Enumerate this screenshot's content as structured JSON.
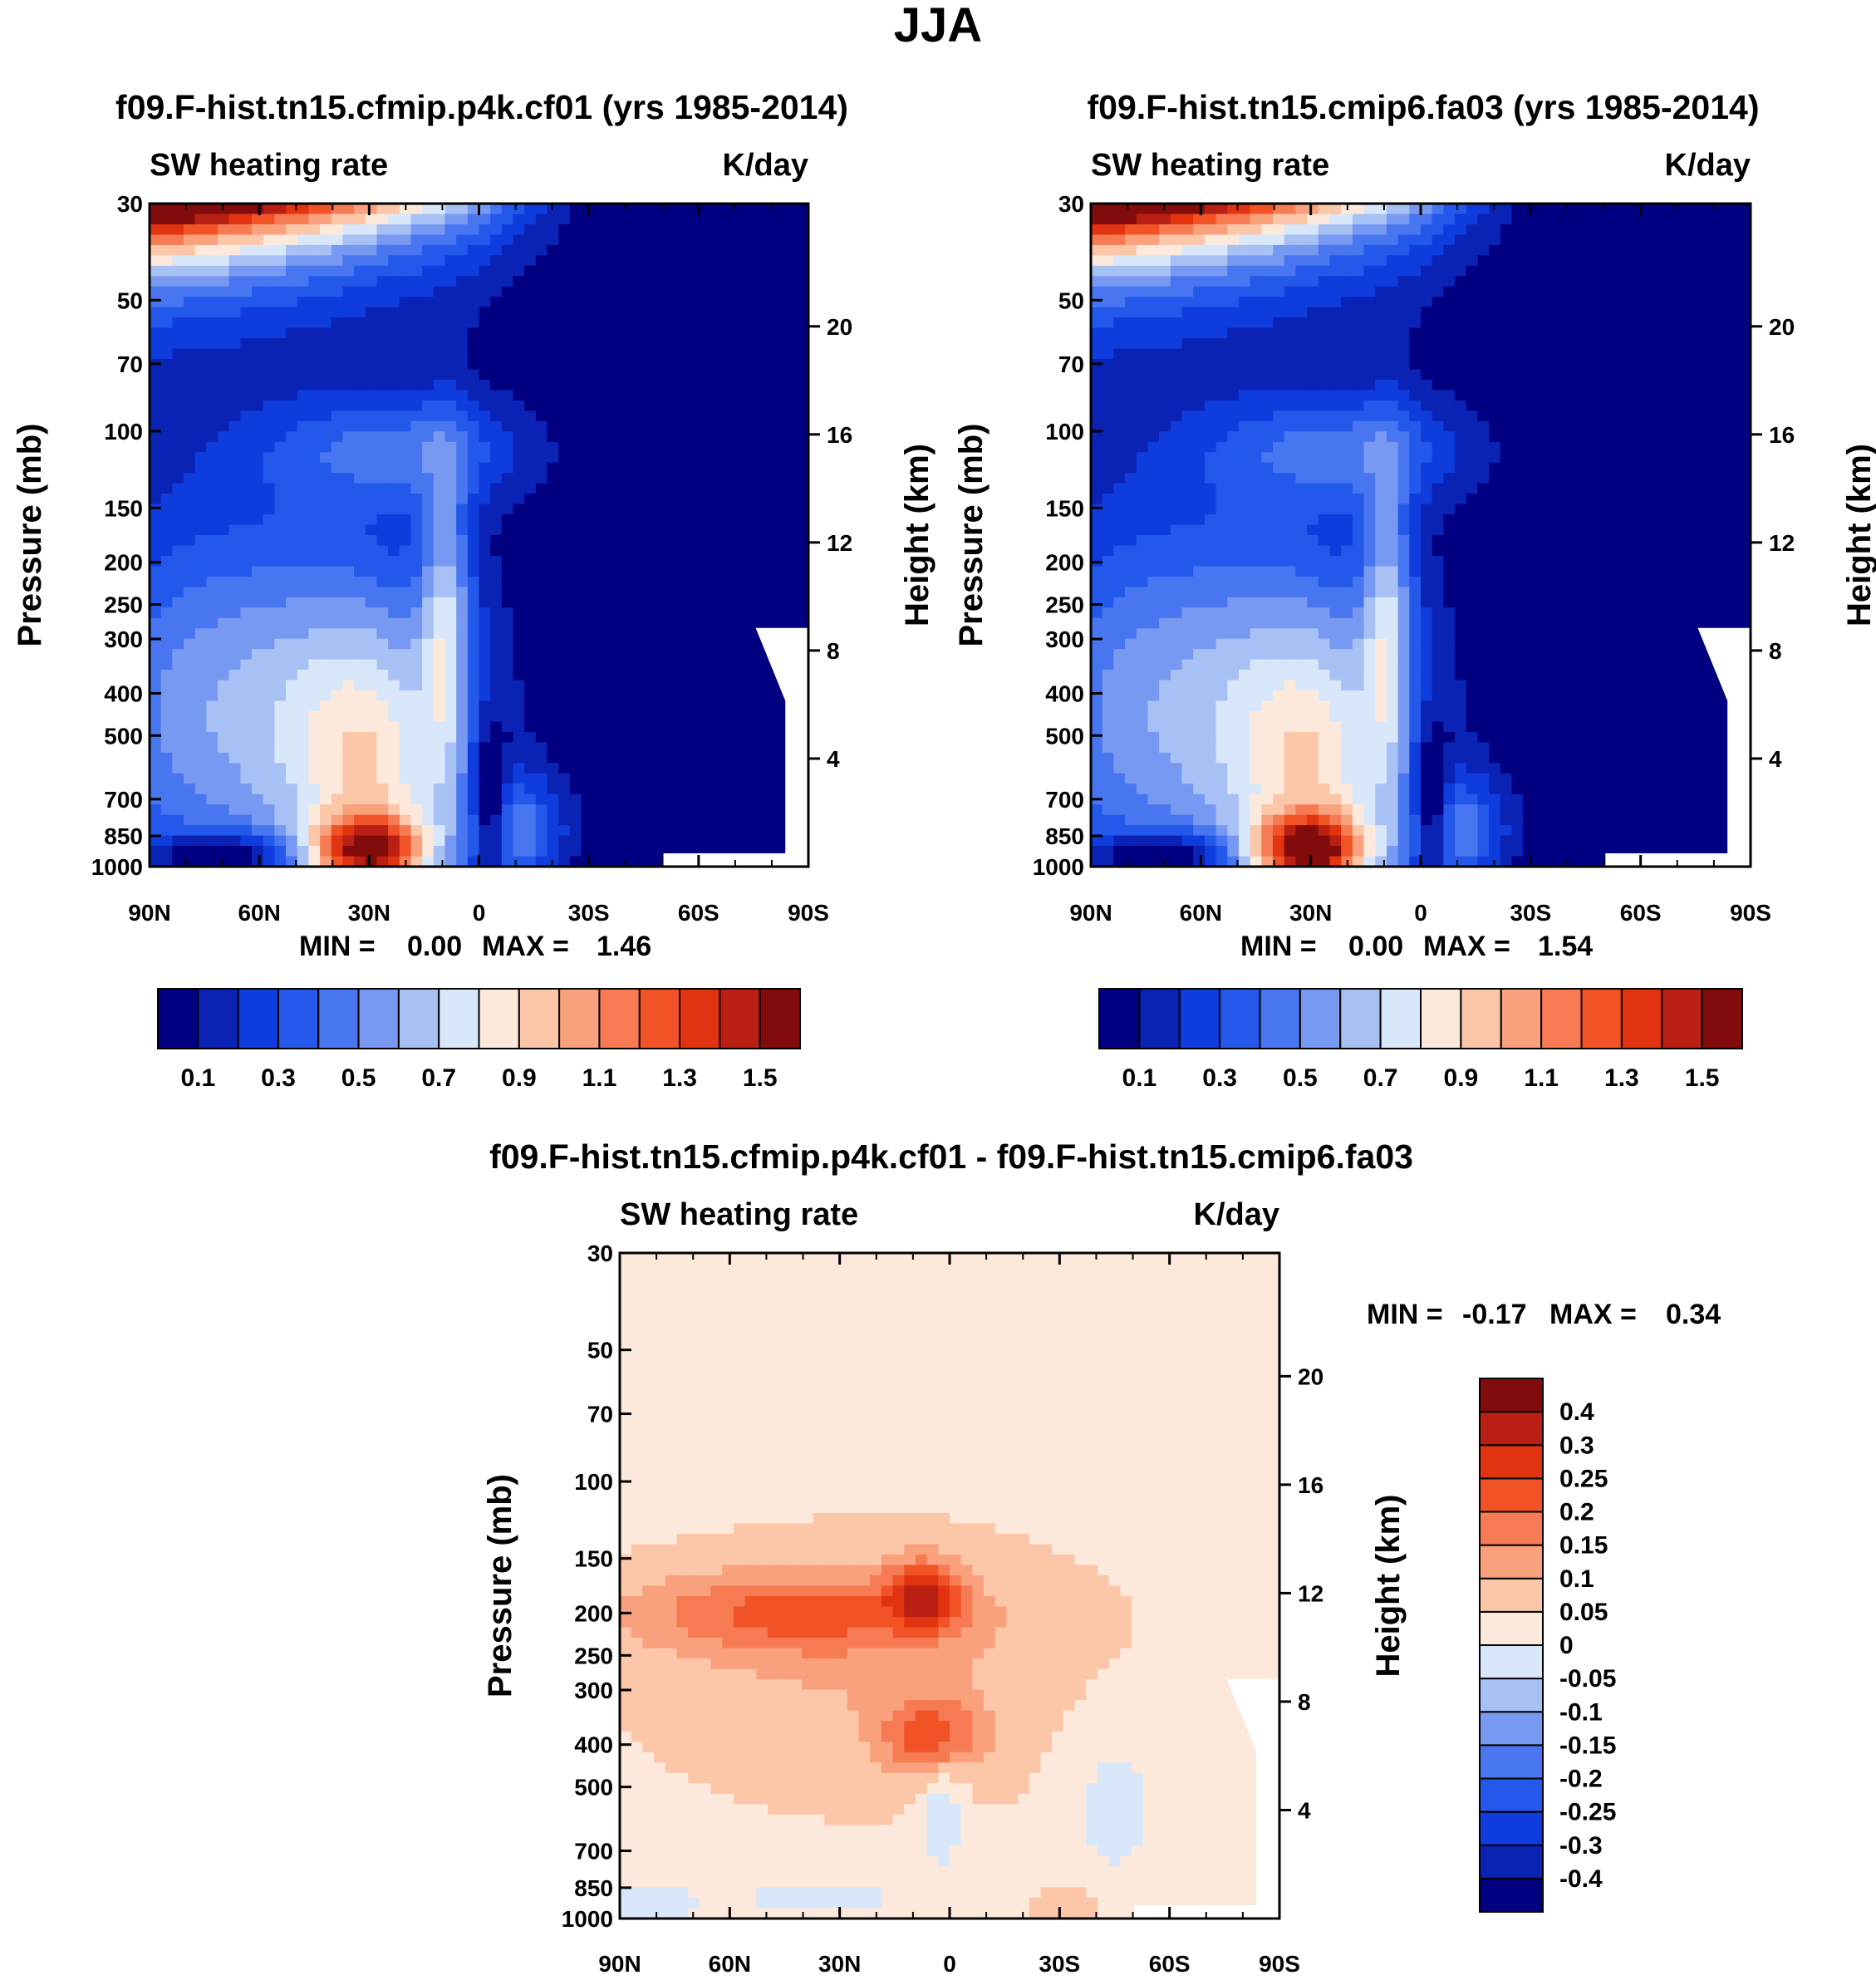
{
  "figure": {
    "title": "JJA"
  },
  "chart_data": [
    {
      "type": "heatmap",
      "title": "f09.F-hist.tn15.cfmip.p4k.cf01 (yrs 1985-2014)",
      "subtitle_left": "SW heating rate",
      "subtitle_right": "K/day",
      "xlabel": "",
      "ylabel": "Pressure (mb)",
      "ylabel_right": "Height (km)",
      "x_ticks": [
        "90N",
        "60N",
        "30N",
        "0",
        "30S",
        "60S",
        "90S"
      ],
      "y_ticks": [
        "30",
        "50",
        "70",
        "100",
        "150",
        "200",
        "250",
        "300",
        "400",
        "500",
        "700",
        "850",
        "1000"
      ],
      "y_ticks_right": [
        "20",
        "16",
        "12",
        "8",
        "4"
      ],
      "xlim": [
        90,
        -90
      ],
      "ylim": [
        1000,
        30
      ],
      "min_label": "MIN =",
      "min_value": "0.00",
      "max_label": "MAX =",
      "max_value": "1.46",
      "colorbar": {
        "orientation": "horizontal",
        "colors": [
          "#000080",
          "#0a23b4",
          "#0f3cdc",
          "#2358eb",
          "#4876f0",
          "#7799f1",
          "#a8c1f5",
          "#d8e7fa",
          "#fde9db",
          "#fcc6a9",
          "#f9a07c",
          "#f67b52",
          "#f15326",
          "#e23310",
          "#b91f12",
          "#820c0c"
        ],
        "tick_labels": [
          "0.1",
          "0.3",
          "0.5",
          "0.7",
          "0.9",
          "1.1",
          "1.3",
          "1.5"
        ]
      }
    },
    {
      "type": "heatmap",
      "title": "f09.F-hist.tn15.cmip6.fa03 (yrs 1985-2014)",
      "subtitle_left": "SW heating rate",
      "subtitle_right": "K/day",
      "xlabel": "",
      "ylabel": "Pressure (mb)",
      "ylabel_right": "Height (km)",
      "x_ticks": [
        "90N",
        "60N",
        "30N",
        "0",
        "30S",
        "60S",
        "90S"
      ],
      "y_ticks": [
        "30",
        "50",
        "70",
        "100",
        "150",
        "200",
        "250",
        "300",
        "400",
        "500",
        "700",
        "850",
        "1000"
      ],
      "y_ticks_right": [
        "20",
        "16",
        "12",
        "8",
        "4"
      ],
      "xlim": [
        90,
        -90
      ],
      "ylim": [
        1000,
        30
      ],
      "min_label": "MIN =",
      "min_value": "0.00",
      "max_label": "MAX =",
      "max_value": "1.54",
      "colorbar": {
        "orientation": "horizontal",
        "colors": [
          "#000080",
          "#0a23b4",
          "#0f3cdc",
          "#2358eb",
          "#4876f0",
          "#7799f1",
          "#a8c1f5",
          "#d8e7fa",
          "#fde9db",
          "#fcc6a9",
          "#f9a07c",
          "#f67b52",
          "#f15326",
          "#e23310",
          "#b91f12",
          "#820c0c"
        ],
        "tick_labels": [
          "0.1",
          "0.3",
          "0.5",
          "0.7",
          "0.9",
          "1.1",
          "1.3",
          "1.5"
        ]
      }
    },
    {
      "type": "heatmap",
      "title": "f09.F-hist.tn15.cfmip.p4k.cf01 - f09.F-hist.tn15.cmip6.fa03",
      "subtitle_left": "SW heating rate",
      "subtitle_right": "K/day",
      "xlabel": "",
      "ylabel": "Pressure (mb)",
      "ylabel_right": "Height (km)",
      "x_ticks": [
        "90N",
        "60N",
        "30N",
        "0",
        "30S",
        "60S",
        "90S"
      ],
      "y_ticks": [
        "30",
        "50",
        "70",
        "100",
        "150",
        "200",
        "250",
        "300",
        "400",
        "500",
        "700",
        "850",
        "1000"
      ],
      "y_ticks_right": [
        "20",
        "16",
        "12",
        "8",
        "4"
      ],
      "xlim": [
        90,
        -90
      ],
      "ylim": [
        1000,
        30
      ],
      "min_label": "MIN =",
      "min_value": "-0.17",
      "max_label": "MAX =",
      "max_value": "0.34",
      "colorbar": {
        "orientation": "vertical",
        "colors": [
          "#000080",
          "#0a23b4",
          "#0f3cdc",
          "#2358eb",
          "#4876f0",
          "#7799f1",
          "#a8c1f5",
          "#d8e7fa",
          "#fde9db",
          "#fcc6a9",
          "#f9a07c",
          "#f67b52",
          "#f15326",
          "#e23310",
          "#b91f12",
          "#820c0c"
        ],
        "tick_labels": [
          "-0.4",
          "-0.3",
          "-0.25",
          "-0.2",
          "-0.15",
          "-0.1",
          "-0.05",
          "0",
          "0.05",
          "0.1",
          "0.15",
          "0.2",
          "0.25",
          "0.3",
          "0.4"
        ]
      }
    }
  ]
}
